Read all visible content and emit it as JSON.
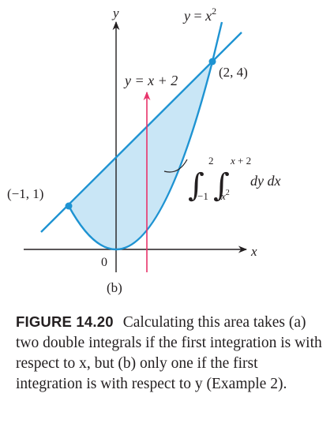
{
  "figure": {
    "y_axis_label": "y",
    "x_axis_label": "x",
    "origin_label": "0",
    "parabola_label": {
      "lhs": "y",
      "eq": " = ",
      "base": "x",
      "sup": "2"
    },
    "line_label": {
      "lhs": "y",
      "rhs": " = x + 2"
    },
    "point_right": "(2, 4)",
    "point_left": "(−1, 1)",
    "integral": {
      "outer_upper": "2",
      "outer_lower": "−1",
      "inner_upper": "x + 2",
      "inner_lower_base": "x",
      "inner_lower_sup": "2",
      "differentials": "dy dx"
    },
    "panel_label": "(b)",
    "colors": {
      "region_fill": "#c9e6f6",
      "curve_stroke": "#1e93d2",
      "arrow": "#e8336b",
      "axis": "#231f20"
    }
  },
  "caption": {
    "label": "FIGURE 14.20",
    "text": "Calculating this area takes (a) two double integrals if the first integration is with respect to x, but (b) only one if the first integration is with respect to y (Example 2)."
  }
}
